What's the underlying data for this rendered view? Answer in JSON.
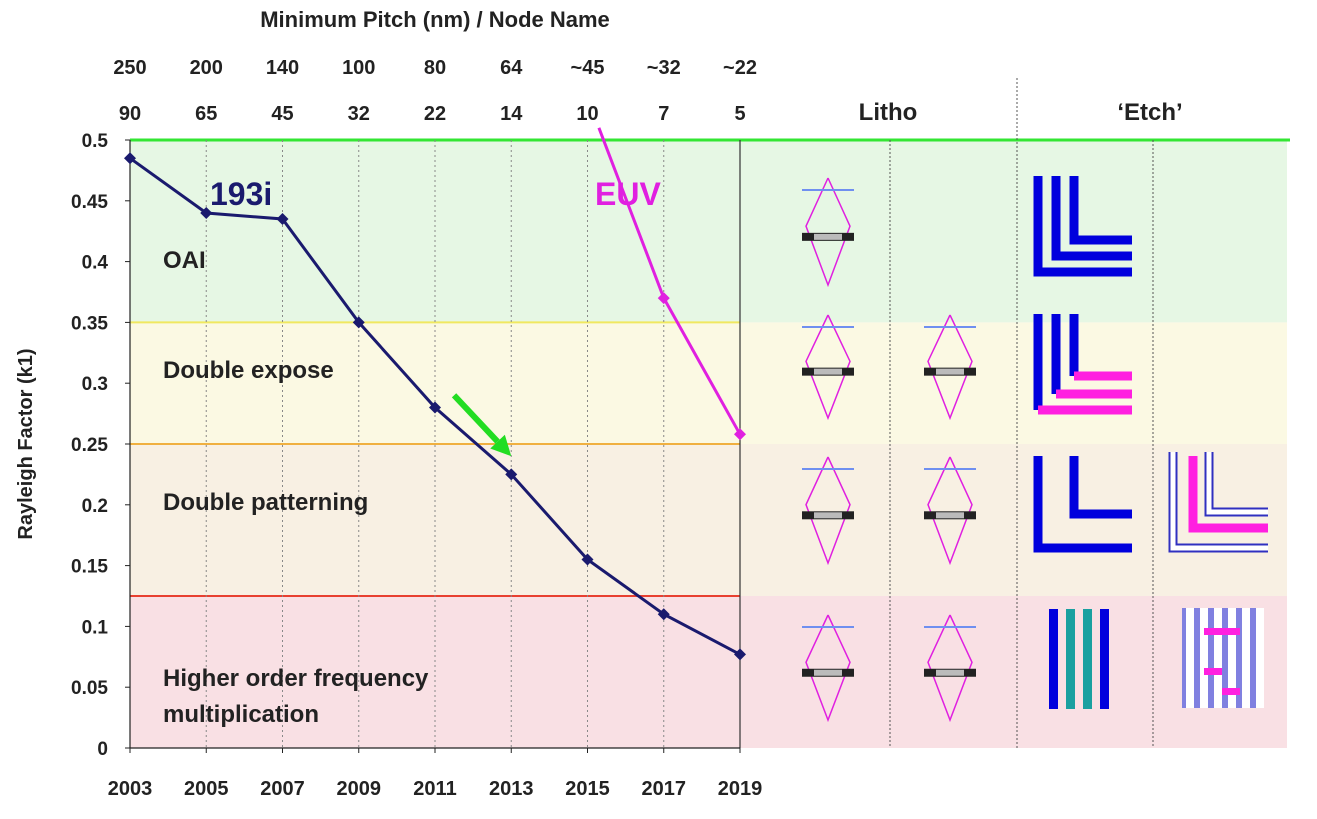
{
  "chart_data": {
    "type": "line",
    "title": "Minimum Pitch (nm) / Node Name",
    "ylabel": "Rayleigh Factor (k1)",
    "xlabel": "",
    "x": [
      2003,
      2005,
      2007,
      2009,
      2011,
      2013,
      2015,
      2017,
      2019
    ],
    "xlim": [
      2003,
      2019
    ],
    "ylim": [
      0,
      0.5
    ],
    "y_ticks": [
      "0",
      "0.05",
      "0.1",
      "0.15",
      "0.2",
      "0.25",
      "0.3",
      "0.35",
      "0.4",
      "0.45",
      "0.5"
    ],
    "x_ticks": [
      "2003",
      "2005",
      "2007",
      "2009",
      "2011",
      "2013",
      "2015",
      "2017",
      "2019"
    ],
    "top_axis_pitch": [
      "250",
      "200",
      "140",
      "100",
      "80",
      "64",
      "~45",
      "~32",
      "~22"
    ],
    "top_axis_node": [
      "90",
      "65",
      "45",
      "32",
      "22",
      "14",
      "10",
      "7",
      "5"
    ],
    "grid": "vertical",
    "series": [
      {
        "name": "193i",
        "color": "#1a1a6e",
        "x": [
          2003,
          2005,
          2007,
          2009,
          2011,
          2013,
          2015,
          2017,
          2019
        ],
        "values": [
          0.485,
          0.44,
          0.435,
          0.35,
          0.28,
          0.225,
          0.155,
          0.11,
          0.077
        ]
      },
      {
        "name": "EUV",
        "color": "#e020e0",
        "x": [
          2015.3,
          2017,
          2019
        ],
        "values": [
          0.51,
          0.37,
          0.258
        ]
      }
    ],
    "bands": [
      {
        "label": "OAI",
        "from": 0.35,
        "to": 0.5,
        "fill": "#e6f7e4",
        "line": "#33e633"
      },
      {
        "label": "Double expose",
        "from": 0.25,
        "to": 0.35,
        "fill": "#fbf9e3",
        "line": "#f0e860"
      },
      {
        "label": "Double patterning",
        "from": 0.125,
        "to": 0.25,
        "fill": "#f8f0e3",
        "line": "#f0b040"
      },
      {
        "label": "Higher order frequency multiplication",
        "from": 0,
        "to": 0.125,
        "fill": "#f9e0e4",
        "line": "#e84030"
      }
    ],
    "annotation": {
      "type": "arrow",
      "color": "#22dd22",
      "from": [
        2011.5,
        0.29
      ],
      "to": [
        2013,
        0.24
      ]
    }
  },
  "columns": {
    "litho": "Litho",
    "etch": "‘Etch’"
  },
  "colors": {
    "line_193i": "#1a1a6e",
    "line_euv": "#e020e0",
    "etch_blue": "#0000dd",
    "etch_magenta": "#ff20e0",
    "etch_teal": "#1aa0a0"
  }
}
